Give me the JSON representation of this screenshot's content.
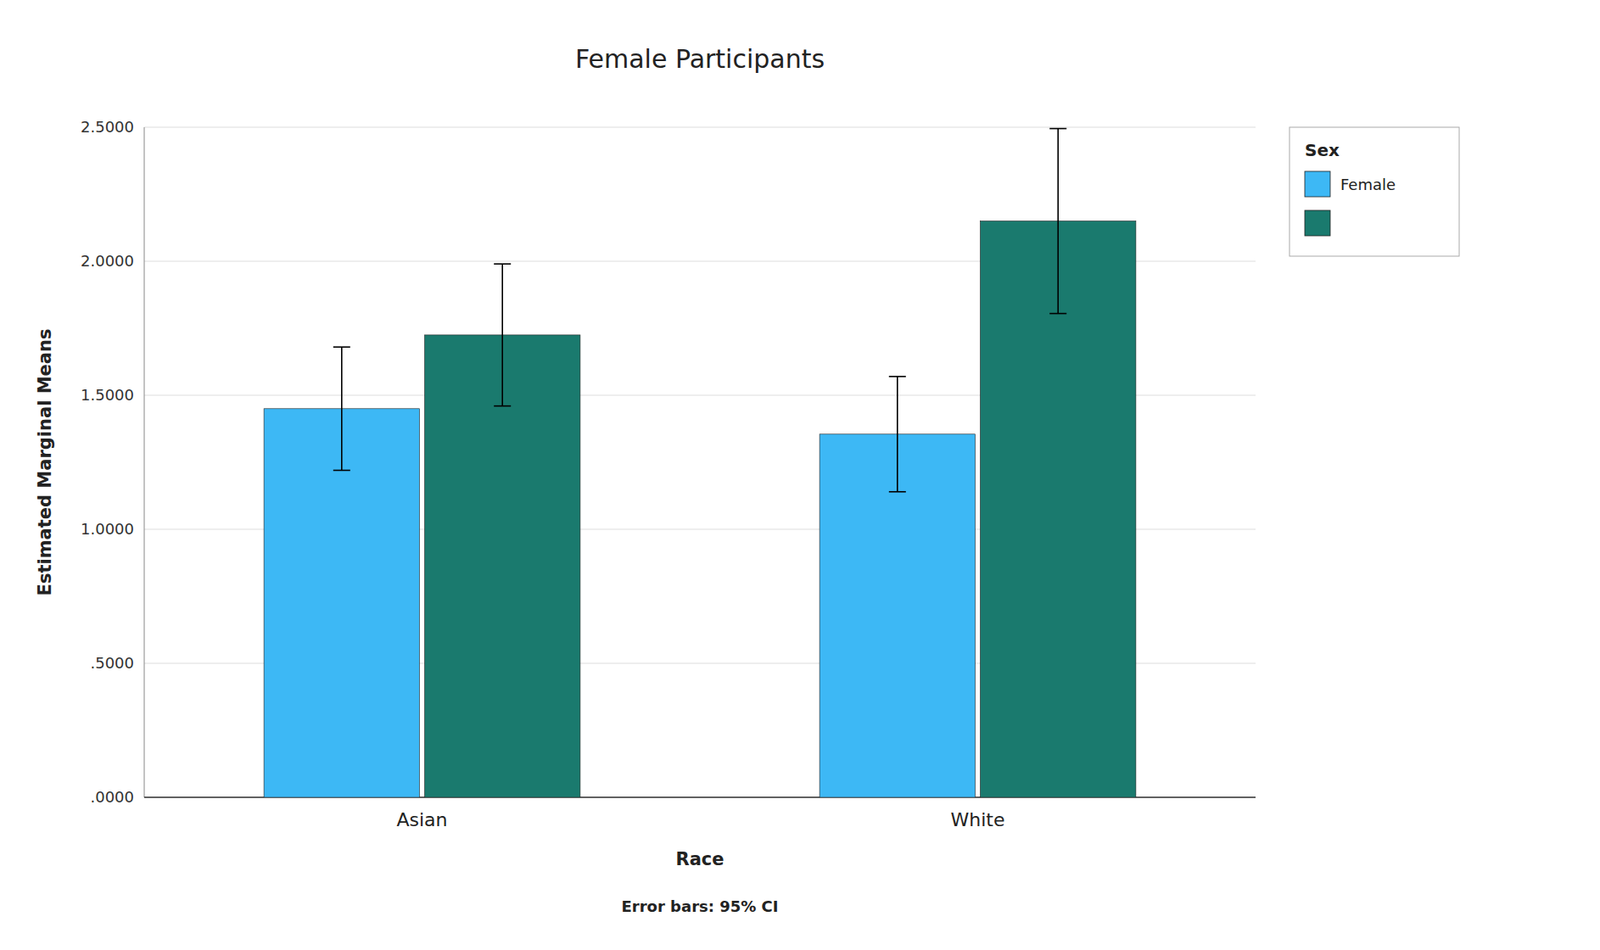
{
  "chart_data": {
    "type": "bar",
    "title": "Female Participants",
    "xlabel": "Race",
    "ylabel": "Estimated Marginal Means",
    "footnote": "Error bars: 95% CI",
    "legend_title": "Sex",
    "categories": [
      "Asian",
      "White"
    ],
    "series": [
      {
        "name": "Female",
        "color": "#3DB8F5",
        "values": [
          1.45,
          1.355
        ],
        "errors": [
          0.23,
          0.215
        ]
      },
      {
        "color": "#1A7A6E",
        "values": [
          1.725,
          2.15
        ],
        "errors": [
          0.265,
          0.345
        ]
      }
    ],
    "ylim": [
      0.0,
      2.5
    ],
    "yticks": [
      {
        "value": 0.0,
        "label": ".0000"
      },
      {
        "value": 0.5,
        "label": ".5000"
      },
      {
        "value": 1.0,
        "label": "1.0000"
      },
      {
        "value": 1.5,
        "label": "1.5000"
      },
      {
        "value": 2.0,
        "label": "2.0000"
      },
      {
        "value": 2.5,
        "label": "2.5000"
      }
    ],
    "grid": true,
    "legend": "upper right"
  }
}
